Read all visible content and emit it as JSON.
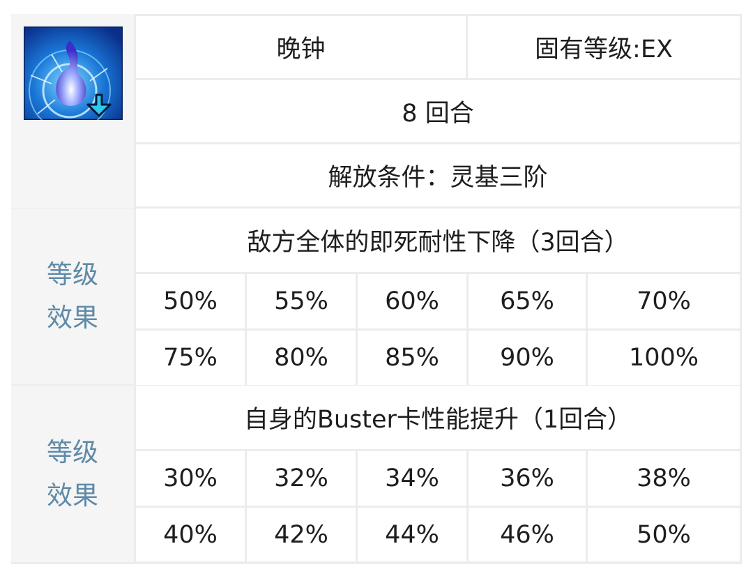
{
  "skill": {
    "icon": "blue-flame-down-arrow-icon",
    "name": "晚钟",
    "rank": "固有等级:EX",
    "cooldown": "8 回合",
    "unlock": "解放条件：灵基三阶"
  },
  "effects": [
    {
      "label_line1": "等级",
      "label_line2": "效果",
      "description": "敌方全体的即死耐性下降（3回合）",
      "values": [
        "50%",
        "55%",
        "60%",
        "65%",
        "70%",
        "75%",
        "80%",
        "85%",
        "90%",
        "100%"
      ]
    },
    {
      "label_line1": "等级",
      "label_line2": "效果",
      "description": "自身的Buster卡性能提升（1回合）",
      "values": [
        "30%",
        "32%",
        "34%",
        "36%",
        "38%",
        "40%",
        "42%",
        "44%",
        "46%",
        "50%"
      ]
    }
  ],
  "colors": {
    "label": "#5f8aa8",
    "border": "#ececec",
    "side_bg": "#f5f5f5"
  }
}
